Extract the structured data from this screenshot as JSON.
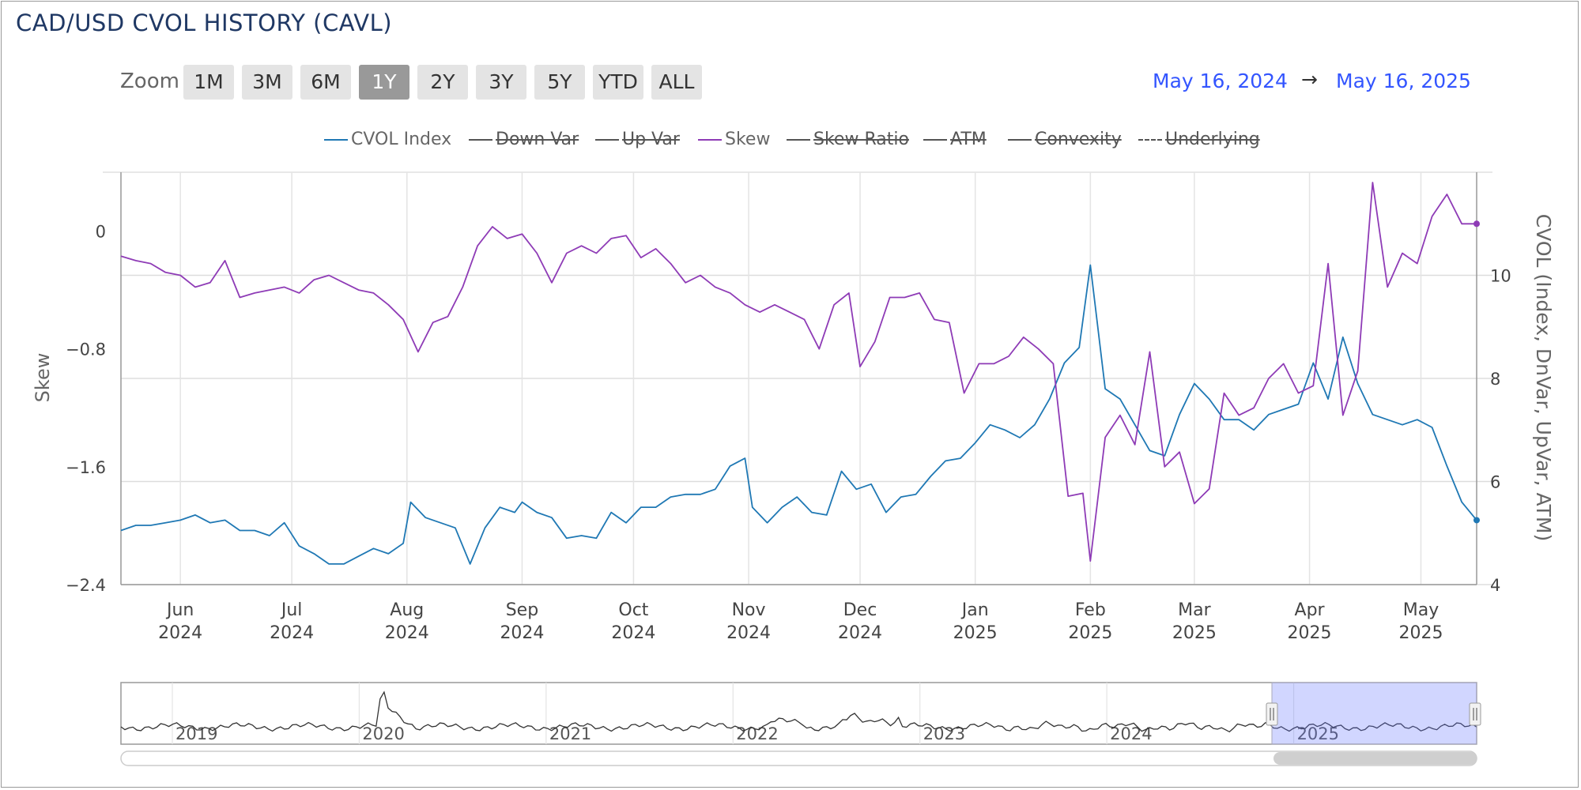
{
  "title": "CAD/USD CVOL HISTORY (CAVL)",
  "zoom": {
    "label": "Zoom",
    "buttons": [
      "1M",
      "3M",
      "6M",
      "1Y",
      "2Y",
      "3Y",
      "5Y",
      "YTD",
      "ALL"
    ],
    "active": "1Y"
  },
  "range": {
    "from": "May 16, 2024",
    "arrow": "→",
    "to": "May 16, 2025"
  },
  "legend": [
    {
      "name": "CVOL Index",
      "color": "#1f78b4",
      "visible": true,
      "dashed": false
    },
    {
      "name": "Down Var",
      "color": "#555555",
      "visible": false,
      "dashed": false
    },
    {
      "name": "Up Var",
      "color": "#555555",
      "visible": false,
      "dashed": false
    },
    {
      "name": "Skew",
      "color": "#8e3bb6",
      "visible": true,
      "dashed": false
    },
    {
      "name": "Skew Ratio",
      "color": "#555555",
      "visible": false,
      "dashed": false
    },
    {
      "name": "ATM",
      "color": "#555555",
      "visible": false,
      "dashed": false
    },
    {
      "name": "Convexity",
      "color": "#555555",
      "visible": false,
      "dashed": false
    },
    {
      "name": "Underlying",
      "color": "#555555",
      "visible": false,
      "dashed": true
    }
  ],
  "chart_data": {
    "type": "line",
    "title": "CAD/USD CVOL HISTORY (CAVL)",
    "x_range": [
      "2024-05-16",
      "2025-05-16"
    ],
    "x_ticks": [
      {
        "date": "2024-06-01",
        "label": [
          "Jun",
          "2024"
        ]
      },
      {
        "date": "2024-07-01",
        "label": [
          "Jul",
          "2024"
        ]
      },
      {
        "date": "2024-08-01",
        "label": [
          "Aug",
          "2024"
        ]
      },
      {
        "date": "2024-09-01",
        "label": [
          "Sep",
          "2024"
        ]
      },
      {
        "date": "2024-10-01",
        "label": [
          "Oct",
          "2024"
        ]
      },
      {
        "date": "2024-11-01",
        "label": [
          "Nov",
          "2024"
        ]
      },
      {
        "date": "2024-12-01",
        "label": [
          "Dec",
          "2024"
        ]
      },
      {
        "date": "2025-01-01",
        "label": [
          "Jan",
          "2025"
        ]
      },
      {
        "date": "2025-02-01",
        "label": [
          "Feb",
          "2025"
        ]
      },
      {
        "date": "2025-03-01",
        "label": [
          "Mar",
          "2025"
        ]
      },
      {
        "date": "2025-04-01",
        "label": [
          "Apr",
          "2025"
        ]
      },
      {
        "date": "2025-05-01",
        "label": [
          "May",
          "2025"
        ]
      }
    ],
    "y_left": {
      "label": "Skew",
      "range": [
        -2.4,
        0.4
      ],
      "ticks": [
        0,
        -0.8,
        -1.6,
        -2.4
      ],
      "tick_labels": [
        "0",
        "−0.8",
        "−1.6",
        "−2.4"
      ]
    },
    "y_right": {
      "label": "CVOL (Index, DnVar, UpVar, ATM)",
      "range": [
        4,
        12
      ],
      "ticks": [
        10,
        8,
        6,
        4
      ],
      "tick_labels": [
        "10",
        "8",
        "6",
        "4"
      ]
    },
    "grid": true,
    "legend_position": "top",
    "series": [
      {
        "name": "CVOL Index",
        "axis": "right",
        "color": "#1f78b4",
        "points": [
          [
            "2024-05-16",
            5.05
          ],
          [
            "2024-05-20",
            5.15
          ],
          [
            "2024-05-24",
            5.15
          ],
          [
            "2024-05-28",
            5.2
          ],
          [
            "2024-06-01",
            5.25
          ],
          [
            "2024-06-05",
            5.35
          ],
          [
            "2024-06-09",
            5.2
          ],
          [
            "2024-06-13",
            5.25
          ],
          [
            "2024-06-17",
            5.05
          ],
          [
            "2024-06-21",
            5.05
          ],
          [
            "2024-06-25",
            4.95
          ],
          [
            "2024-06-29",
            5.2
          ],
          [
            "2024-07-03",
            4.75
          ],
          [
            "2024-07-07",
            4.6
          ],
          [
            "2024-07-11",
            4.4
          ],
          [
            "2024-07-15",
            4.4
          ],
          [
            "2024-07-19",
            4.55
          ],
          [
            "2024-07-23",
            4.7
          ],
          [
            "2024-07-27",
            4.6
          ],
          [
            "2024-07-31",
            4.8
          ],
          [
            "2024-08-02",
            5.6
          ],
          [
            "2024-08-06",
            5.3
          ],
          [
            "2024-08-10",
            5.2
          ],
          [
            "2024-08-14",
            5.1
          ],
          [
            "2024-08-18",
            4.4
          ],
          [
            "2024-08-22",
            5.1
          ],
          [
            "2024-08-26",
            5.5
          ],
          [
            "2024-08-30",
            5.4
          ],
          [
            "2024-09-01",
            5.6
          ],
          [
            "2024-09-05",
            5.4
          ],
          [
            "2024-09-09",
            5.3
          ],
          [
            "2024-09-13",
            4.9
          ],
          [
            "2024-09-17",
            4.95
          ],
          [
            "2024-09-21",
            4.9
          ],
          [
            "2024-09-25",
            5.4
          ],
          [
            "2024-09-29",
            5.2
          ],
          [
            "2024-10-03",
            5.5
          ],
          [
            "2024-10-07",
            5.5
          ],
          [
            "2024-10-11",
            5.7
          ],
          [
            "2024-10-15",
            5.75
          ],
          [
            "2024-10-19",
            5.75
          ],
          [
            "2024-10-23",
            5.85
          ],
          [
            "2024-10-27",
            6.3
          ],
          [
            "2024-10-31",
            6.45
          ],
          [
            "2024-11-02",
            5.5
          ],
          [
            "2024-11-06",
            5.2
          ],
          [
            "2024-11-10",
            5.5
          ],
          [
            "2024-11-14",
            5.7
          ],
          [
            "2024-11-18",
            5.4
          ],
          [
            "2024-11-22",
            5.35
          ],
          [
            "2024-11-26",
            6.2
          ],
          [
            "2024-11-30",
            5.85
          ],
          [
            "2024-12-04",
            5.95
          ],
          [
            "2024-12-08",
            5.4
          ],
          [
            "2024-12-12",
            5.7
          ],
          [
            "2024-12-16",
            5.75
          ],
          [
            "2024-12-20",
            6.1
          ],
          [
            "2024-12-24",
            6.4
          ],
          [
            "2024-12-28",
            6.45
          ],
          [
            "2025-01-01",
            6.75
          ],
          [
            "2025-01-05",
            7.1
          ],
          [
            "2025-01-09",
            7.0
          ],
          [
            "2025-01-13",
            6.85
          ],
          [
            "2025-01-17",
            7.1
          ],
          [
            "2025-01-21",
            7.6
          ],
          [
            "2025-01-25",
            8.3
          ],
          [
            "2025-01-29",
            8.6
          ],
          [
            "2025-02-01",
            10.2
          ],
          [
            "2025-02-05",
            7.8
          ],
          [
            "2025-02-09",
            7.6
          ],
          [
            "2025-02-13",
            7.1
          ],
          [
            "2025-02-17",
            6.6
          ],
          [
            "2025-02-21",
            6.5
          ],
          [
            "2025-02-25",
            7.3
          ],
          [
            "2025-03-01",
            7.9
          ],
          [
            "2025-03-05",
            7.6
          ],
          [
            "2025-03-09",
            7.2
          ],
          [
            "2025-03-13",
            7.2
          ],
          [
            "2025-03-17",
            7.0
          ],
          [
            "2025-03-21",
            7.3
          ],
          [
            "2025-03-25",
            7.4
          ],
          [
            "2025-03-29",
            7.5
          ],
          [
            "2025-04-02",
            8.3
          ],
          [
            "2025-04-06",
            7.6
          ],
          [
            "2025-04-10",
            8.8
          ],
          [
            "2025-04-14",
            7.9
          ],
          [
            "2025-04-18",
            7.3
          ],
          [
            "2025-04-22",
            7.2
          ],
          [
            "2025-04-26",
            7.1
          ],
          [
            "2025-04-30",
            7.2
          ],
          [
            "2025-05-04",
            7.05
          ],
          [
            "2025-05-08",
            6.3
          ],
          [
            "2025-05-12",
            5.6
          ],
          [
            "2025-05-16",
            5.25
          ]
        ]
      },
      {
        "name": "Skew",
        "axis": "left",
        "color": "#8e3bb6",
        "points": [
          [
            "2024-05-16",
            -0.17
          ],
          [
            "2024-05-20",
            -0.2
          ],
          [
            "2024-05-24",
            -0.22
          ],
          [
            "2024-05-28",
            -0.28
          ],
          [
            "2024-06-01",
            -0.3
          ],
          [
            "2024-06-05",
            -0.38
          ],
          [
            "2024-06-09",
            -0.35
          ],
          [
            "2024-06-13",
            -0.2
          ],
          [
            "2024-06-17",
            -0.45
          ],
          [
            "2024-06-21",
            -0.42
          ],
          [
            "2024-06-25",
            -0.4
          ],
          [
            "2024-06-29",
            -0.38
          ],
          [
            "2024-07-03",
            -0.42
          ],
          [
            "2024-07-07",
            -0.33
          ],
          [
            "2024-07-11",
            -0.3
          ],
          [
            "2024-07-15",
            -0.35
          ],
          [
            "2024-07-19",
            -0.4
          ],
          [
            "2024-07-23",
            -0.42
          ],
          [
            "2024-07-27",
            -0.5
          ],
          [
            "2024-07-31",
            -0.6
          ],
          [
            "2024-08-04",
            -0.82
          ],
          [
            "2024-08-08",
            -0.62
          ],
          [
            "2024-08-12",
            -0.58
          ],
          [
            "2024-08-16",
            -0.38
          ],
          [
            "2024-08-20",
            -0.1
          ],
          [
            "2024-08-24",
            0.03
          ],
          [
            "2024-08-28",
            -0.05
          ],
          [
            "2024-09-01",
            -0.02
          ],
          [
            "2024-09-05",
            -0.15
          ],
          [
            "2024-09-09",
            -0.35
          ],
          [
            "2024-09-13",
            -0.15
          ],
          [
            "2024-09-17",
            -0.1
          ],
          [
            "2024-09-21",
            -0.15
          ],
          [
            "2024-09-25",
            -0.05
          ],
          [
            "2024-09-29",
            -0.03
          ],
          [
            "2024-10-03",
            -0.18
          ],
          [
            "2024-10-07",
            -0.12
          ],
          [
            "2024-10-11",
            -0.22
          ],
          [
            "2024-10-15",
            -0.35
          ],
          [
            "2024-10-19",
            -0.3
          ],
          [
            "2024-10-23",
            -0.38
          ],
          [
            "2024-10-27",
            -0.42
          ],
          [
            "2024-10-31",
            -0.5
          ],
          [
            "2024-11-04",
            -0.55
          ],
          [
            "2024-11-08",
            -0.5
          ],
          [
            "2024-11-12",
            -0.55
          ],
          [
            "2024-11-16",
            -0.6
          ],
          [
            "2024-11-20",
            -0.8
          ],
          [
            "2024-11-24",
            -0.5
          ],
          [
            "2024-11-28",
            -0.42
          ],
          [
            "2024-12-01",
            -0.92
          ],
          [
            "2024-12-05",
            -0.75
          ],
          [
            "2024-12-09",
            -0.45
          ],
          [
            "2024-12-13",
            -0.45
          ],
          [
            "2024-12-17",
            -0.42
          ],
          [
            "2024-12-21",
            -0.6
          ],
          [
            "2024-12-25",
            -0.62
          ],
          [
            "2024-12-29",
            -1.1
          ],
          [
            "2025-01-02",
            -0.9
          ],
          [
            "2025-01-06",
            -0.9
          ],
          [
            "2025-01-10",
            -0.85
          ],
          [
            "2025-01-14",
            -0.72
          ],
          [
            "2025-01-18",
            -0.8
          ],
          [
            "2025-01-22",
            -0.9
          ],
          [
            "2025-01-26",
            -1.8
          ],
          [
            "2025-01-30",
            -1.78
          ],
          [
            "2025-02-01",
            -2.24
          ],
          [
            "2025-02-05",
            -1.4
          ],
          [
            "2025-02-09",
            -1.25
          ],
          [
            "2025-02-13",
            -1.45
          ],
          [
            "2025-02-17",
            -0.82
          ],
          [
            "2025-02-21",
            -1.6
          ],
          [
            "2025-02-25",
            -1.5
          ],
          [
            "2025-03-01",
            -1.85
          ],
          [
            "2025-03-05",
            -1.75
          ],
          [
            "2025-03-09",
            -1.1
          ],
          [
            "2025-03-13",
            -1.25
          ],
          [
            "2025-03-17",
            -1.2
          ],
          [
            "2025-03-21",
            -1.0
          ],
          [
            "2025-03-25",
            -0.9
          ],
          [
            "2025-03-29",
            -1.1
          ],
          [
            "2025-04-02",
            -1.05
          ],
          [
            "2025-04-06",
            -0.22
          ],
          [
            "2025-04-10",
            -1.25
          ],
          [
            "2025-04-14",
            -0.95
          ],
          [
            "2025-04-18",
            0.33
          ],
          [
            "2025-04-22",
            -0.38
          ],
          [
            "2025-04-26",
            -0.15
          ],
          [
            "2025-04-30",
            -0.22
          ],
          [
            "2025-05-04",
            0.1
          ],
          [
            "2025-05-08",
            0.25
          ],
          [
            "2025-05-12",
            0.05
          ],
          [
            "2025-05-16",
            0.05
          ]
        ]
      }
    ],
    "navigator": {
      "labels": [
        "2019",
        "2020",
        "2021",
        "2022",
        "2023",
        "2024",
        "2025"
      ],
      "selected_range": [
        "2024-05-16",
        "2025-05-16"
      ]
    }
  }
}
